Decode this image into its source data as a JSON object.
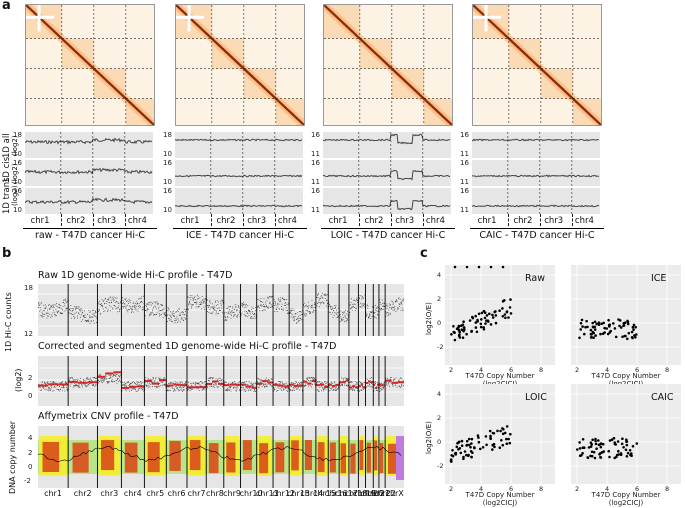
{
  "panel_a": {
    "label": "a",
    "row_labels": [
      "1D all",
      "(log2)",
      "1D cis",
      "(log2)",
      "1D trans",
      "(log2)"
    ],
    "chromosomes": [
      "chr1",
      "chr2",
      "chr3",
      "chr4"
    ],
    "panels": [
      {
        "caption": "raw - T47D cancer Hi-C",
        "ticks": [
          "18",
          "10",
          "16",
          "10",
          "16",
          "10"
        ]
      },
      {
        "caption": "ICE - T47D cancer Hi-C",
        "ticks": [
          "18",
          "10",
          "16",
          "10",
          "16",
          "10"
        ]
      },
      {
        "caption": "LOIC - T47D cancer Hi-C",
        "ticks": [
          "16",
          "11",
          "16",
          "11",
          "16",
          "11"
        ]
      },
      {
        "caption": "CAIC - T47D cancer Hi-C",
        "ticks": [
          "16",
          "11",
          "16",
          "11",
          "16",
          "11"
        ]
      }
    ]
  },
  "panel_b": {
    "label": "b",
    "title1": "Raw 1D genome-wide Hi-C profile - T47D",
    "title2": "Corrected and segmented 1D genome-wide Hi-C profile - T47D",
    "title3": "Affymetrix CNV profile - T47D",
    "ylabel1": "1D Hi-C counts",
    "ylabel1b": "(log2)",
    "ylabel3": "DNA copy number",
    "ticks1": [
      "18",
      "12"
    ],
    "ticks2": [
      "2",
      "0"
    ],
    "ticks3": [
      "4",
      "2",
      "0",
      "-2"
    ],
    "chromosomes": [
      "chr1",
      "chr2",
      "chr3",
      "chr4",
      "chr5",
      "chr6",
      "chr7",
      "chr8",
      "chr9",
      "chr10",
      "chr11",
      "chr12",
      "chr13",
      "chr14",
      "chr15",
      "chr16",
      "chr17",
      "chr18",
      "chr19",
      "chr20",
      "chr21",
      "chr22",
      "chrX"
    ]
  },
  "panel_c": {
    "label": "c",
    "ylabel": "log2(O/E)",
    "xlabel1": "T47D Copy Number",
    "xlabel2": "(log2CICJ)",
    "xticks": [
      "2",
      "4",
      "6",
      "8"
    ],
    "yticks": [
      "4",
      "2",
      "0",
      "-2"
    ],
    "panels": [
      {
        "name": "Raw"
      },
      {
        "name": "ICE"
      },
      {
        "name": "LOIC"
      },
      {
        "name": "CAIC"
      }
    ]
  },
  "colors": {
    "hic_high": "#8b2a0a",
    "hic_low": "#fdf3e5",
    "segment": "#d62728",
    "cnv_amp": "#d94b1a",
    "cnv_yellow": "#f4ee2c",
    "cnv_green": "#b9e58a",
    "cnv_purple": "#c07be0"
  }
}
